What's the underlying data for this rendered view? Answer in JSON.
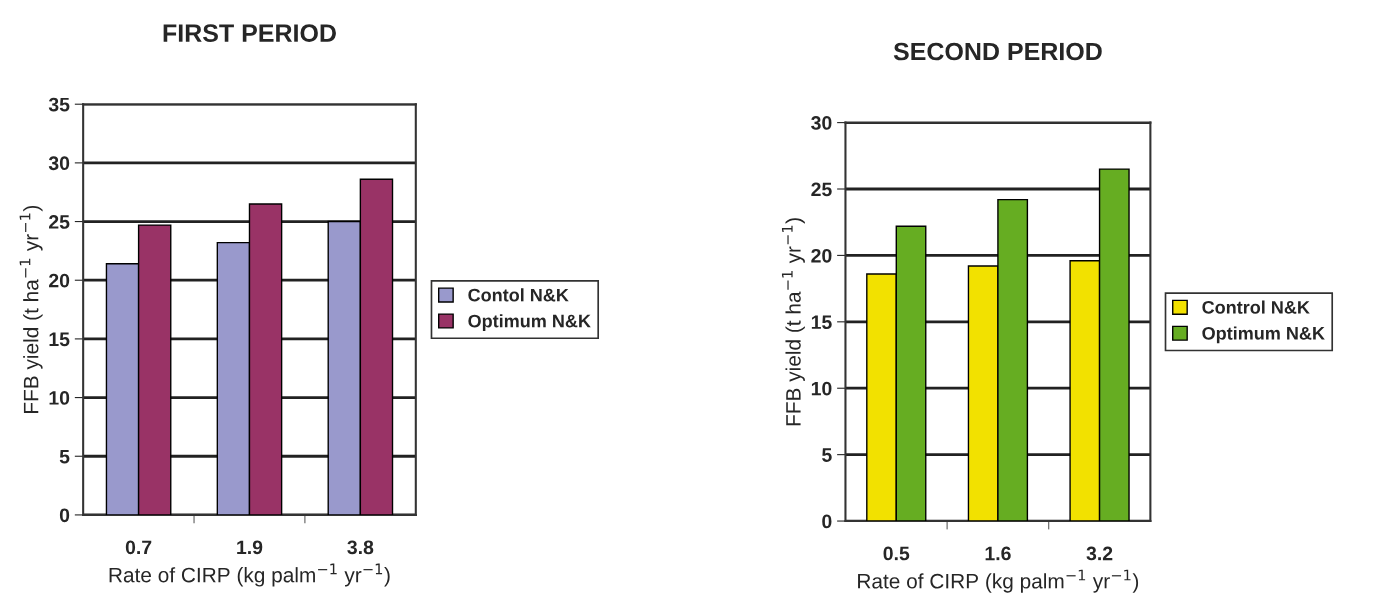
{
  "chart_data": [
    {
      "type": "bar",
      "title": "FIRST PERIOD",
      "xlabel": "Rate of CIRP (kg palm$^{−1}$ yr$^{−1}$)",
      "ylabel": "FFB yield (t ha$^{−1}$ yr$^{−1}$)",
      "categories": [
        "0.7",
        "1.9",
        "3.8"
      ],
      "series": [
        {
          "name": "Contol N&K",
          "color": "#9999cc",
          "values": [
            21.4,
            23.2,
            25.0
          ]
        },
        {
          "name": "Optimum N&K",
          "color": "#993366",
          "values": [
            24.7,
            26.5,
            28.6
          ]
        }
      ],
      "ylim": [
        0,
        35
      ],
      "yticks": [
        0,
        5,
        10,
        15,
        20,
        25,
        30,
        35
      ],
      "grid": "y",
      "legend": "right"
    },
    {
      "type": "bar",
      "title": "SECOND PERIOD",
      "xlabel": "Rate of CIRP (kg palm$^{−1}$ yr$^{−1}$)",
      "ylabel": "FFB yield (t ha$^{−1}$ yr$^{−1}$)",
      "categories": [
        "0.5",
        "1.6",
        "3.2"
      ],
      "series": [
        {
          "name": "Control N&K",
          "color": "#f2e100",
          "values": [
            18.6,
            19.2,
            19.6
          ]
        },
        {
          "name": "Optimum N&K",
          "color": "#66ad22",
          "values": [
            22.2,
            24.2,
            26.5
          ]
        }
      ],
      "ylim": [
        0,
        30
      ],
      "yticks": [
        0,
        5,
        10,
        15,
        20,
        25,
        30
      ],
      "grid": "y",
      "legend": "right"
    }
  ]
}
